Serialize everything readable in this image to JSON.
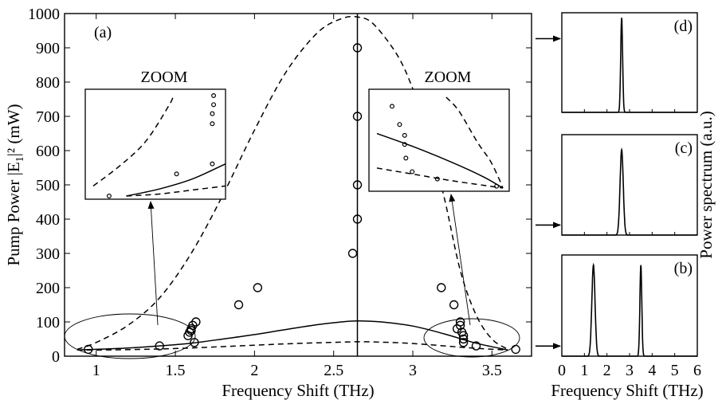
{
  "chart_data": [
    {
      "type": "line",
      "panel_label": "(a)",
      "xlabel": "Frequency Shift (THz)",
      "ylabel": "Pump Power |E",
      "ylabel_sub": "1",
      "ylabel_tail": "|² (mW)",
      "xlim": [
        0.8,
        3.75
      ],
      "ylim": [
        0,
        1000
      ],
      "x_ticks": [
        1,
        1.5,
        2,
        2.5,
        3,
        3.5
      ],
      "y_ticks": [
        0,
        100,
        200,
        300,
        400,
        500,
        600,
        700,
        800,
        900,
        1000
      ],
      "vertical_line_x": 2.65,
      "series": [
        {
          "style": "dashed-upper",
          "x": [
            0.88,
            1.0,
            1.2,
            1.4,
            1.6,
            1.8,
            2.0,
            2.2,
            2.4,
            2.55,
            2.65,
            2.75,
            2.9,
            3.0,
            3.1,
            3.2,
            3.3,
            3.4,
            3.5,
            3.6
          ],
          "y": [
            20,
            40,
            90,
            170,
            300,
            470,
            660,
            830,
            945,
            985,
            990,
            970,
            880,
            780,
            640,
            460,
            250,
            120,
            50,
            20
          ]
        },
        {
          "style": "solid",
          "x": [
            0.88,
            1.0,
            1.2,
            1.4,
            1.6,
            1.8,
            2.0,
            2.2,
            2.4,
            2.55,
            2.65,
            2.8,
            3.0,
            3.2,
            3.4,
            3.6
          ],
          "y": [
            18,
            20,
            24,
            30,
            38,
            50,
            63,
            78,
            92,
            100,
            103,
            100,
            88,
            65,
            38,
            18
          ]
        },
        {
          "style": "dashed-lower",
          "x": [
            0.88,
            1.0,
            1.2,
            1.4,
            1.6,
            1.8,
            2.0,
            2.2,
            2.4,
            2.55,
            2.65,
            2.8,
            3.0,
            3.2,
            3.4,
            3.6
          ],
          "y": [
            18,
            18,
            19,
            21,
            24,
            28,
            32,
            36,
            39,
            41,
            42,
            41,
            37,
            30,
            23,
            18
          ]
        },
        {
          "style": "circles",
          "x": [
            0.95,
            1.4,
            1.58,
            1.59,
            1.6,
            1.6,
            1.61,
            1.62,
            1.63,
            1.9,
            2.02,
            2.62,
            2.65,
            2.65,
            2.65,
            2.65,
            3.18,
            3.26,
            3.28,
            3.3,
            3.3,
            3.31,
            3.32,
            3.32,
            3.32,
            3.4,
            3.65
          ],
          "y": [
            20,
            30,
            60,
            70,
            80,
            75,
            90,
            40,
            100,
            150,
            200,
            300,
            400,
            500,
            700,
            900,
            200,
            150,
            80,
            100,
            90,
            70,
            60,
            50,
            40,
            30,
            20
          ]
        }
      ],
      "insets": [
        {
          "title": "ZOOM",
          "dashed_upper": [
            [
              0.0,
              0.1
            ],
            [
              0.2,
              0.3
            ],
            [
              0.4,
              0.55
            ],
            [
              0.58,
              0.92
            ],
            [
              0.6,
              1.0
            ]
          ],
          "solid": [
            [
              0.25,
              0.0
            ],
            [
              0.5,
              0.07
            ],
            [
              0.75,
              0.17
            ],
            [
              1.0,
              0.32
            ]
          ],
          "dashed_lower": [
            [
              0.25,
              0.0
            ],
            [
              0.5,
              0.02
            ],
            [
              0.75,
              0.06
            ],
            [
              1.0,
              0.1
            ]
          ],
          "circles": [
            [
              0.12,
              0.0
            ],
            [
              0.63,
              0.22
            ],
            [
              0.9,
              0.32
            ],
            [
              0.9,
              0.72
            ],
            [
              0.9,
              0.82
            ],
            [
              0.91,
              0.91
            ],
            [
              0.91,
              1.0
            ]
          ]
        },
        {
          "title": "ZOOM",
          "dashed_upper": [
            [
              0.55,
              1.0
            ],
            [
              0.65,
              0.85
            ],
            [
              0.8,
              0.5
            ],
            [
              0.9,
              0.3
            ],
            [
              0.97,
              0.1
            ],
            [
              1.0,
              0.0
            ]
          ],
          "solid": [
            [
              0.0,
              0.6
            ],
            [
              0.3,
              0.45
            ],
            [
              0.6,
              0.28
            ],
            [
              0.85,
              0.12
            ],
            [
              1.0,
              0.0
            ]
          ],
          "dashed_lower": [
            [
              0.0,
              0.22
            ],
            [
              0.3,
              0.15
            ],
            [
              0.6,
              0.08
            ],
            [
              0.85,
              0.03
            ],
            [
              1.0,
              0.0
            ]
          ],
          "circles": [
            [
              0.12,
              0.9
            ],
            [
              0.18,
              0.7
            ],
            [
              0.22,
              0.58
            ],
            [
              0.22,
              0.48
            ],
            [
              0.23,
              0.33
            ],
            [
              0.28,
              0.18
            ],
            [
              0.48,
              0.1
            ],
            [
              0.95,
              0.02
            ]
          ]
        }
      ]
    },
    {
      "type": "line",
      "xlabel": "Frequency Shift (THz)",
      "ylabel": "Power spectrum (a.u.)",
      "xlim": [
        0,
        6
      ],
      "x_ticks": [
        0,
        1,
        2,
        3,
        4,
        5,
        6
      ],
      "panels": [
        {
          "label": "(d)",
          "peaks": [
            {
              "x": 2.65,
              "height": 0.95,
              "width": 0.06
            }
          ],
          "arrow_level": 0.74
        },
        {
          "label": "(c)",
          "peaks": [
            {
              "x": 2.65,
              "height": 0.85,
              "width": 0.1
            }
          ],
          "arrow_level": 0.1
        },
        {
          "label": "(b)",
          "peaks": [
            {
              "x": 1.4,
              "height": 0.9,
              "width": 0.1
            },
            {
              "x": 3.5,
              "height": 0.9,
              "width": 0.06
            }
          ],
          "arrow_level": 0.1
        }
      ]
    }
  ]
}
